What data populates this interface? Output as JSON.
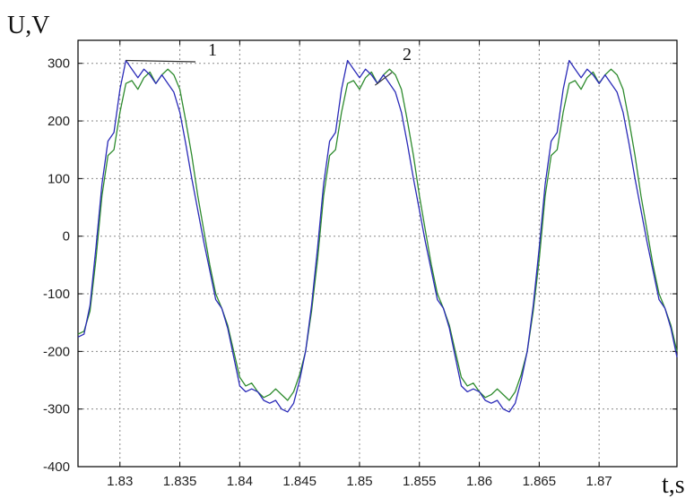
{
  "chart_data": {
    "type": "line",
    "ylabel": "U,V",
    "xlabel": "t,s",
    "xlim": [
      1.8265,
      1.8765
    ],
    "ylim": [
      -400,
      340
    ],
    "grid": true,
    "xticks": [
      "1.83",
      "1.835",
      "1.84",
      "1.845",
      "1.85",
      "1.855",
      "1.86",
      "1.865",
      "1.87"
    ],
    "xtick_values": [
      1.83,
      1.835,
      1.84,
      1.845,
      1.85,
      1.855,
      1.86,
      1.865,
      1.87
    ],
    "yticks": [
      "300",
      "200",
      "100",
      "0",
      "-100",
      "-200",
      "-300",
      "-400"
    ],
    "ytick_values": [
      300,
      200,
      100,
      0,
      -100,
      -200,
      -300,
      -400
    ],
    "series": [
      {
        "name": "1",
        "color": "#2b2bb8",
        "x": [
          1.8265,
          1.827,
          1.8275,
          1.828,
          1.8285,
          1.829,
          1.8295,
          1.83,
          1.8305,
          1.831,
          1.8315,
          1.832,
          1.8325,
          1.833,
          1.8335,
          1.834,
          1.8345,
          1.835,
          1.8355,
          1.836,
          1.8365,
          1.837,
          1.8375,
          1.838,
          1.8385,
          1.839,
          1.8395,
          1.84,
          1.8405,
          1.841,
          1.8415,
          1.842,
          1.8425,
          1.843,
          1.8435,
          1.844,
          1.8445,
          1.845,
          1.8455,
          1.846,
          1.8465,
          1.847,
          1.8475,
          1.848,
          1.8485,
          1.849,
          1.8495,
          1.85,
          1.8505,
          1.851,
          1.8515,
          1.852,
          1.8525,
          1.853,
          1.8535,
          1.854,
          1.8545,
          1.855,
          1.8555,
          1.856,
          1.8565,
          1.857,
          1.8575,
          1.858,
          1.8585,
          1.859,
          1.8595,
          1.86,
          1.8605,
          1.861,
          1.8615,
          1.862,
          1.8625,
          1.863,
          1.8635,
          1.864,
          1.8645,
          1.865,
          1.8655,
          1.866,
          1.8665,
          1.867,
          1.8675,
          1.868,
          1.8685,
          1.869,
          1.8695,
          1.87,
          1.8705,
          1.871,
          1.8715,
          1.872,
          1.8725,
          1.873,
          1.8735,
          1.874,
          1.8745,
          1.875,
          1.8755,
          1.876,
          1.8765
        ],
        "values": [
          -175,
          -170,
          -120,
          -20,
          90,
          165,
          180,
          255,
          305,
          290,
          275,
          290,
          280,
          265,
          280,
          265,
          250,
          215,
          160,
          100,
          45,
          -10,
          -60,
          -110,
          -125,
          -160,
          -210,
          -260,
          -270,
          -265,
          -270,
          -285,
          -290,
          -285,
          -300,
          -305,
          -290,
          -250,
          -200,
          -120,
          -20,
          90,
          165,
          180,
          255,
          305,
          290,
          275,
          290,
          280,
          265,
          280,
          265,
          250,
          215,
          160,
          100,
          45,
          -10,
          -60,
          -110,
          -125,
          -160,
          -210,
          -260,
          -270,
          -265,
          -270,
          -285,
          -290,
          -285,
          -300,
          -305,
          -290,
          -250,
          -200,
          -120,
          -20,
          90,
          165,
          180,
          255,
          305,
          290,
          275,
          290,
          280,
          265,
          280,
          265,
          250,
          215,
          160,
          100,
          45,
          -10,
          -60,
          -110,
          -125,
          -160,
          -210
        ]
      },
      {
        "name": "2",
        "color": "#2e8b2e",
        "x": [
          1.8265,
          1.827,
          1.8275,
          1.828,
          1.8285,
          1.829,
          1.8295,
          1.83,
          1.8305,
          1.831,
          1.8315,
          1.832,
          1.8325,
          1.833,
          1.8335,
          1.834,
          1.8345,
          1.835,
          1.8355,
          1.836,
          1.8365,
          1.837,
          1.8375,
          1.838,
          1.8385,
          1.839,
          1.8395,
          1.84,
          1.8405,
          1.841,
          1.8415,
          1.842,
          1.8425,
          1.843,
          1.8435,
          1.844,
          1.8445,
          1.845,
          1.8455,
          1.846,
          1.8465,
          1.847,
          1.8475,
          1.848,
          1.8485,
          1.849,
          1.8495,
          1.85,
          1.8505,
          1.851,
          1.8515,
          1.852,
          1.8525,
          1.853,
          1.8535,
          1.854,
          1.8545,
          1.855,
          1.8555,
          1.856,
          1.8565,
          1.857,
          1.8575,
          1.858,
          1.8585,
          1.859,
          1.8595,
          1.86,
          1.8605,
          1.861,
          1.8615,
          1.862,
          1.8625,
          1.863,
          1.8635,
          1.864,
          1.8645,
          1.865,
          1.8655,
          1.866,
          1.8665,
          1.867,
          1.8675,
          1.868,
          1.8685,
          1.869,
          1.8695,
          1.87,
          1.8705,
          1.871,
          1.8715,
          1.872,
          1.8725,
          1.873,
          1.8735,
          1.874,
          1.8745,
          1.875,
          1.8755,
          1.876,
          1.8765
        ],
        "values": [
          -170,
          -165,
          -130,
          -40,
          70,
          140,
          150,
          215,
          265,
          270,
          255,
          275,
          285,
          265,
          280,
          290,
          280,
          255,
          200,
          140,
          70,
          10,
          -50,
          -100,
          -125,
          -155,
          -200,
          -245,
          -260,
          -255,
          -270,
          -280,
          -275,
          -265,
          -275,
          -285,
          -270,
          -240,
          -200,
          -130,
          -40,
          70,
          140,
          150,
          215,
          265,
          270,
          255,
          275,
          285,
          265,
          280,
          290,
          280,
          255,
          200,
          140,
          70,
          10,
          -50,
          -100,
          -125,
          -155,
          -200,
          -245,
          -260,
          -255,
          -270,
          -280,
          -275,
          -265,
          -275,
          -285,
          -270,
          -240,
          -200,
          -130,
          -40,
          70,
          140,
          150,
          215,
          265,
          270,
          255,
          275,
          285,
          265,
          280,
          290,
          280,
          255,
          200,
          140,
          70,
          10,
          -50,
          -100,
          -125,
          -155,
          -200
        ]
      }
    ],
    "annotations": [
      {
        "text": "1",
        "series": "1",
        "points_to": {
          "x": 1.8305,
          "y": 305
        }
      },
      {
        "text": "2",
        "series": "2",
        "points_to": {
          "x": 1.8513,
          "y": 262
        }
      }
    ]
  }
}
